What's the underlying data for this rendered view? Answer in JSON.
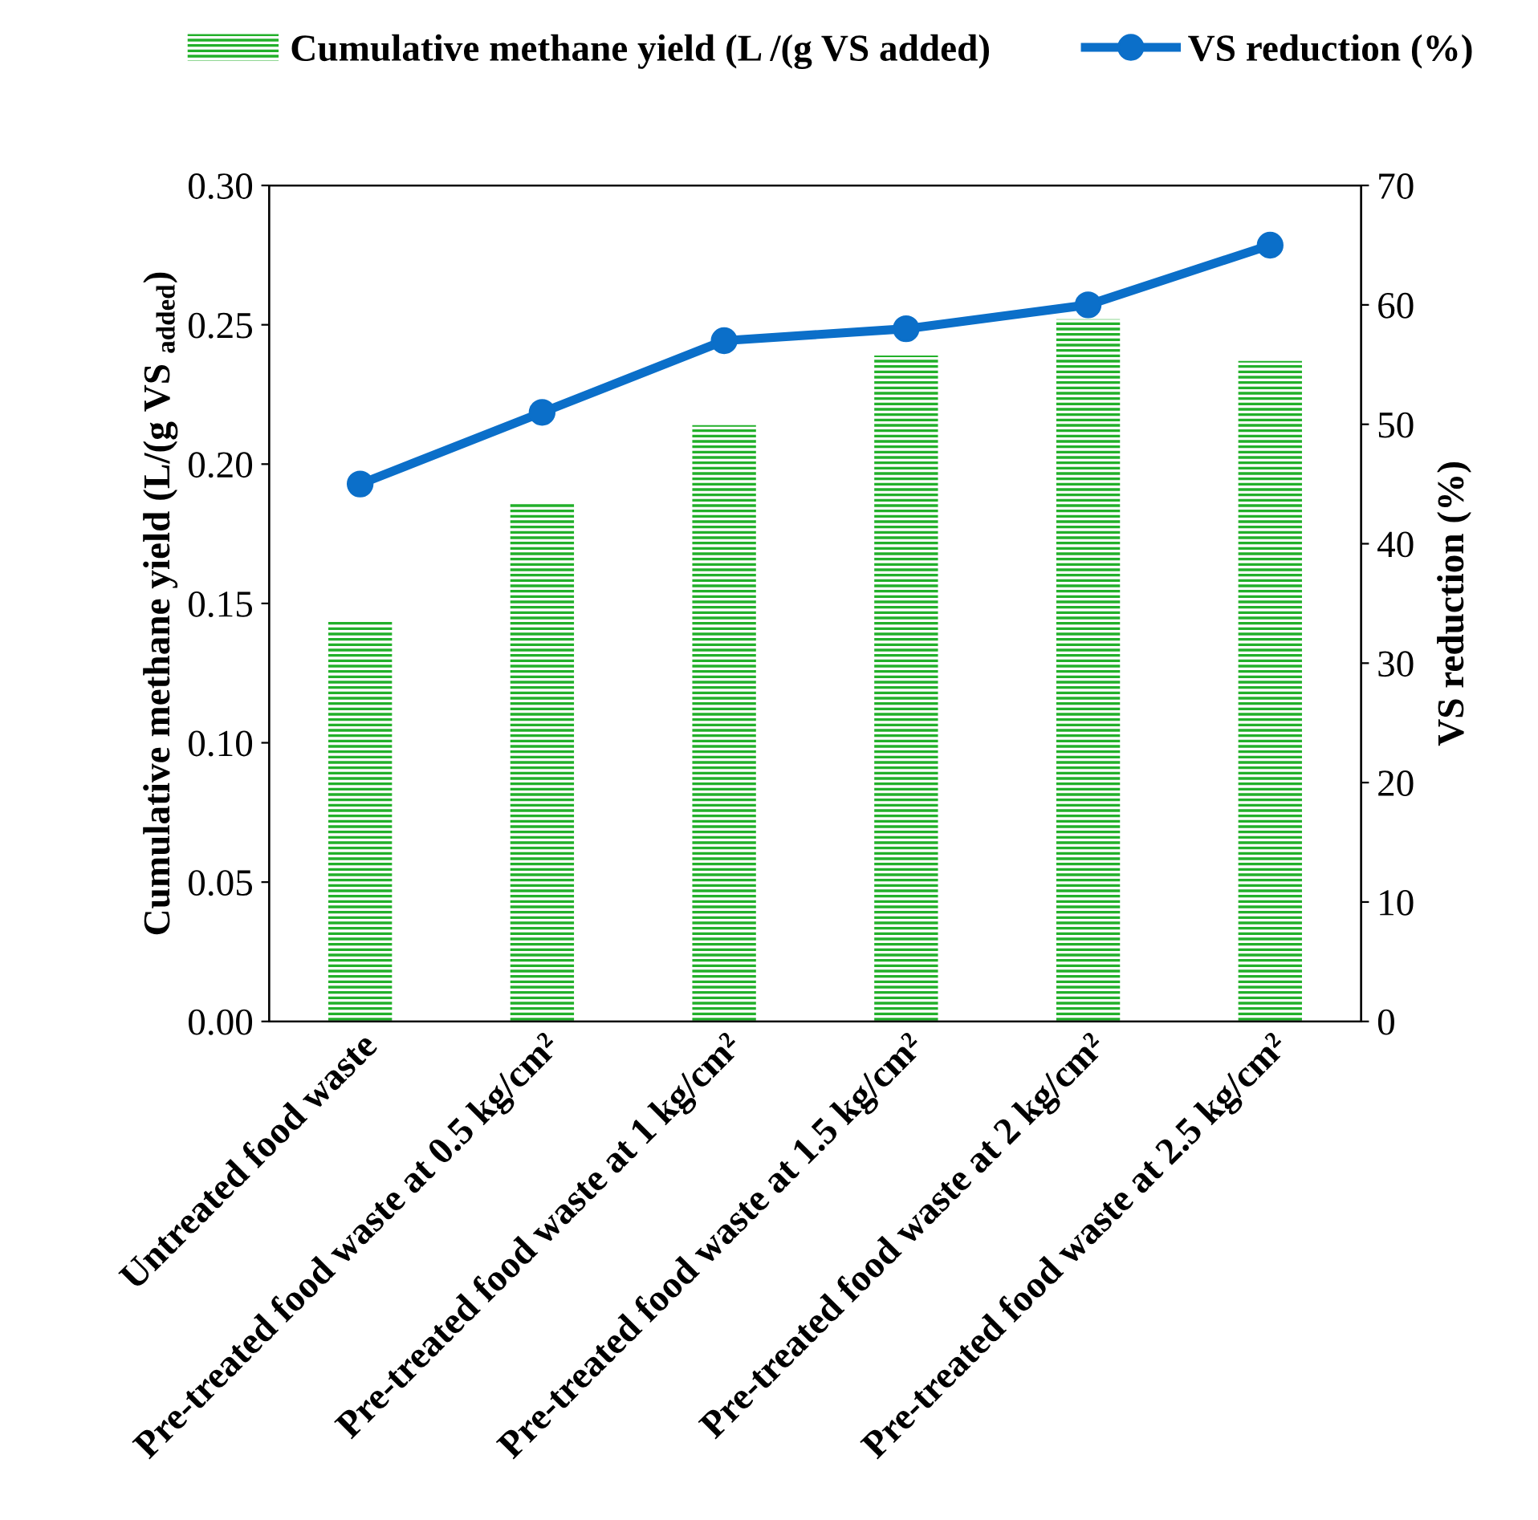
{
  "chart_data": {
    "type": "bar",
    "categories": [
      "Untreated food waste",
      "Pre-treated food waste at 0.5 kg/cm²",
      "Pre-treated food waste at 1 kg/cm²",
      "Pre-treated food waste at 1.5 kg/cm²",
      "Pre-treated food waste at 2 kg/cm²",
      "Pre-treated food waste at 2.5 kg/cm²"
    ],
    "series": [
      {
        "name": "Cumulative methane yield (L /(g VS added)",
        "color": "#22b02a",
        "values": [
          0.144,
          0.186,
          0.214,
          0.239,
          0.252,
          0.237
        ]
      },
      {
        "name": "VS reduction (%)",
        "type": "line",
        "axis": "y2",
        "color": "#0b6fc9",
        "values": [
          45,
          51,
          57,
          58,
          60,
          65
        ]
      }
    ],
    "ylabel": "Cumulative methane yield (L/(g VS $_{added}$)",
    "y2label": "VS reduction (%)",
    "ylim": [
      0,
      0.3
    ],
    "yticks": [
      {
        "value": 0,
        "label": "0.00"
      },
      {
        "value": 0.05,
        "label": "0.05"
      },
      {
        "value": 0.1,
        "label": "0.10"
      },
      {
        "value": 0.15,
        "label": "0.15"
      },
      {
        "value": 0.2,
        "label": "0.20"
      },
      {
        "value": 0.25,
        "label": "0.25"
      },
      {
        "value": 0.3,
        "label": "0.30"
      }
    ],
    "y2lim": [
      0,
      70
    ],
    "y2ticks": [
      0,
      10,
      20,
      30,
      40,
      50,
      60,
      70
    ],
    "marker": "circle",
    "legend": "top",
    "grid": false
  }
}
